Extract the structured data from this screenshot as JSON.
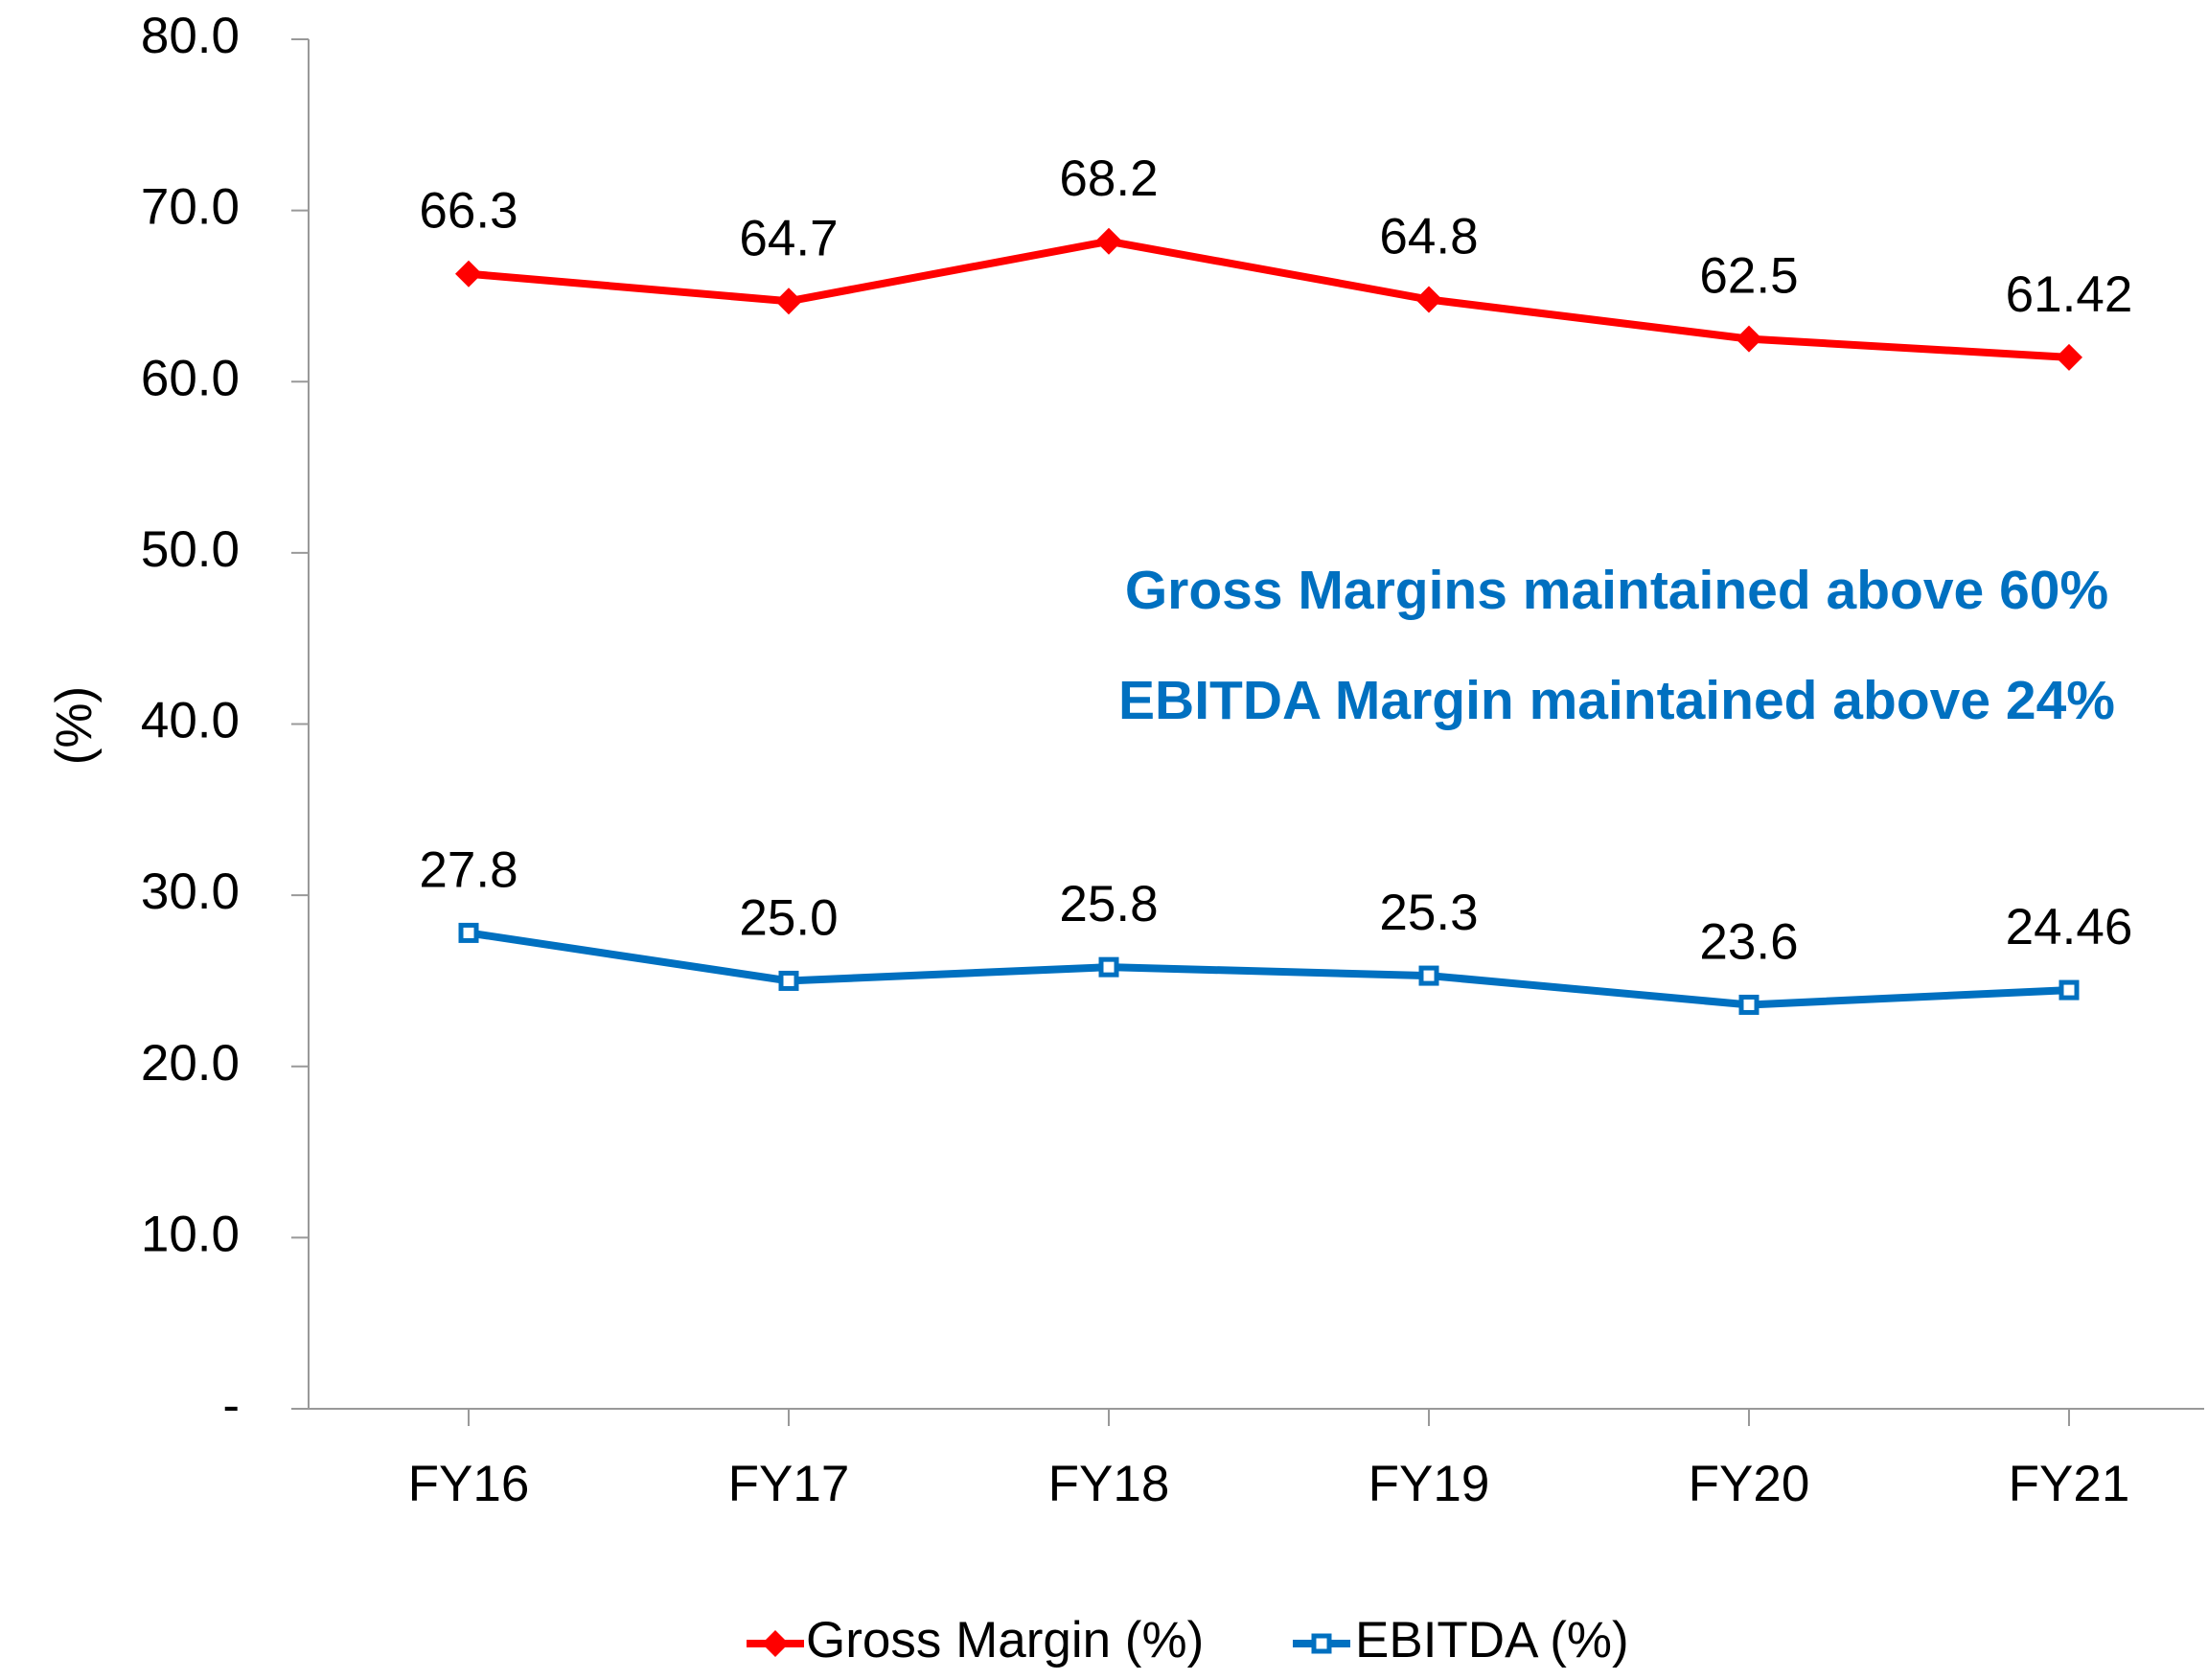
{
  "chart_data": {
    "type": "line",
    "categories": [
      "FY16",
      "FY17",
      "FY18",
      "FY19",
      "FY20",
      "FY21"
    ],
    "series": [
      {
        "name": "Gross Margin (%)",
        "color": "#ff0000",
        "marker": "diamond",
        "values": [
          66.3,
          64.7,
          68.2,
          64.8,
          62.5,
          61.42
        ],
        "value_labels": [
          "66.3",
          "64.7",
          "68.2",
          "64.8",
          "62.5",
          "61.42"
        ]
      },
      {
        "name": "EBITDA (%)",
        "color": "#0070c0",
        "marker": "square",
        "values": [
          27.8,
          25.0,
          25.8,
          25.3,
          23.6,
          24.46
        ],
        "value_labels": [
          "27.8",
          "25.0",
          "25.8",
          "25.3",
          "23.6",
          "24.46"
        ]
      }
    ],
    "y_label": "(%)",
    "annotations": [
      "Gross Margins maintained above 60%",
      "EBITDA Margin maintained above 24%"
    ],
    "annotation_color": "#0070c0",
    "ylim": [
      0,
      80
    ],
    "yticks": [
      {
        "value": 0,
        "label": "-"
      },
      {
        "value": 10,
        "label": "10.0"
      },
      {
        "value": 20,
        "label": "20.0"
      },
      {
        "value": 30,
        "label": "30.0"
      },
      {
        "value": 40,
        "label": "40.0"
      },
      {
        "value": 50,
        "label": "50.0"
      },
      {
        "value": 60,
        "label": "60.0"
      },
      {
        "value": 70,
        "label": "70.0"
      },
      {
        "value": 80,
        "label": "80.0"
      }
    ],
    "grid": false,
    "legend": "bottom"
  }
}
